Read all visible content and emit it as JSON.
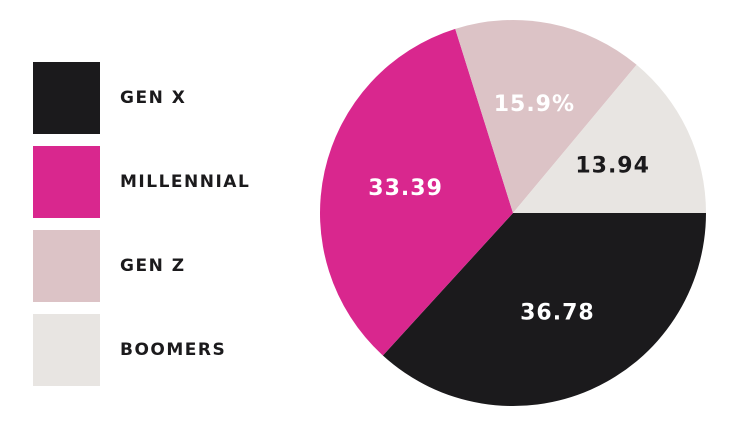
{
  "chart_data": {
    "type": "pie",
    "categories": [
      "GEN X",
      "MILLENNIAL",
      "GEN Z",
      "BOOMERS"
    ],
    "values": [
      36.78,
      33.39,
      15.9,
      13.94
    ],
    "value_labels": [
      "36.78",
      "33.39",
      "15.9%",
      "13.94"
    ],
    "colors": [
      "#1b1a1c",
      "#d9278e",
      "#dcc3c6",
      "#e8e5e2"
    ],
    "legend": "left"
  }
}
